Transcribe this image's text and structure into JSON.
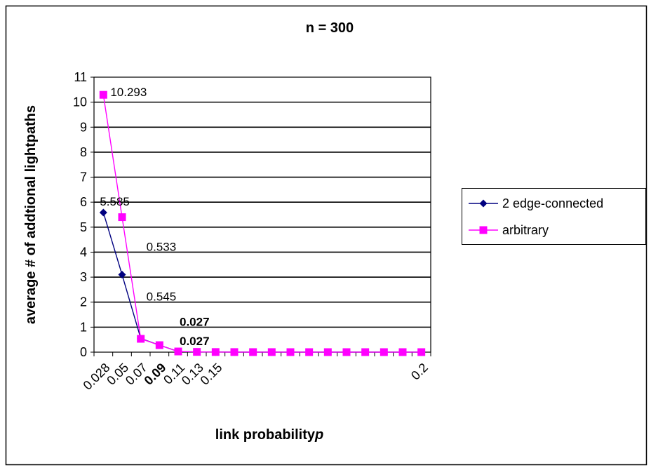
{
  "chart_data": {
    "type": "line",
    "title": "n = 300",
    "xlabel_main": "link probability",
    "xlabel_var": "p",
    "ylabel": "average # of addtional  lightpaths",
    "ylim": [
      0,
      11
    ],
    "yticks": [
      "0",
      "1",
      "2",
      "3",
      "4",
      "5",
      "6",
      "7",
      "8",
      "9",
      "10",
      "11"
    ],
    "xtick_labels": [
      "0.028",
      "0.05",
      "0.07",
      "0.09",
      "0.11",
      "0.13",
      "0.15",
      "0.2"
    ],
    "xtick_bold": [
      false,
      false,
      false,
      true,
      false,
      false,
      false,
      false
    ],
    "category_count": 18,
    "grid": "horizontal",
    "legend_position": "right",
    "series": [
      {
        "name": "2 edge-connected",
        "color": "#000080",
        "marker": "diamond",
        "values": [
          5.585,
          3.1,
          0.545,
          0.28,
          0.027,
          0.01,
          0.005,
          0.003,
          0.002,
          0.002,
          0.001,
          0.001,
          0.001,
          0.001,
          0.001,
          0.001,
          0.001,
          0.001
        ]
      },
      {
        "name": "arbitrary",
        "color": "#ff00ff",
        "marker": "square",
        "values": [
          10.293,
          5.4,
          0.533,
          0.28,
          0.027,
          0.01,
          0.005,
          0.003,
          0.002,
          0.002,
          0.001,
          0.001,
          0.001,
          0.001,
          0.001,
          0.001,
          0.001,
          0.001
        ]
      }
    ],
    "data_labels": [
      {
        "text": "10.293",
        "bold": false
      },
      {
        "text": "5.585",
        "bold": false
      },
      {
        "text": "0.533",
        "bold": false
      },
      {
        "text": "0.545",
        "bold": false
      },
      {
        "text": "0.027",
        "bold": true
      },
      {
        "text": "0.027",
        "bold": true
      }
    ]
  }
}
